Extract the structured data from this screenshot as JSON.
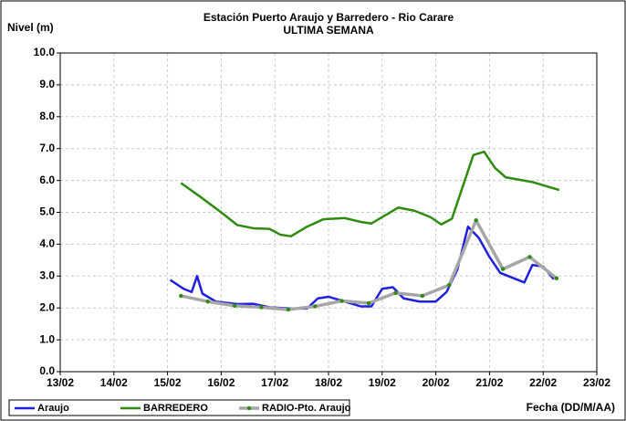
{
  "chart_data": {
    "type": "line",
    "title": "Estación Puerto Araujo y Barredero - Rio Carare",
    "subtitle": "ULTIMA SEMANA",
    "y_label": "Nivel (m)",
    "x_label": "Fecha (DD/M/AA)",
    "xlim": [
      13,
      23
    ],
    "xticks": [
      {
        "value": 13,
        "label": "13/02"
      },
      {
        "value": 14,
        "label": "14/02"
      },
      {
        "value": 15,
        "label": "15/02"
      },
      {
        "value": 16,
        "label": "16/02"
      },
      {
        "value": 17,
        "label": "17/02"
      },
      {
        "value": 18,
        "label": "18/02"
      },
      {
        "value": 19,
        "label": "19/02"
      },
      {
        "value": 20,
        "label": "20/02"
      },
      {
        "value": 21,
        "label": "21/02"
      },
      {
        "value": 22,
        "label": "22/02"
      },
      {
        "value": 23,
        "label": "23/02"
      }
    ],
    "ylim": [
      0,
      10
    ],
    "yticks": [
      {
        "value": 0,
        "label": "0.0"
      },
      {
        "value": 1,
        "label": "1.0"
      },
      {
        "value": 2,
        "label": "2.0"
      },
      {
        "value": 3,
        "label": "3.0"
      },
      {
        "value": 4,
        "label": "4.0"
      },
      {
        "value": 5,
        "label": "5.0"
      },
      {
        "value": 6,
        "label": "6.0"
      },
      {
        "value": 7,
        "label": "7.0"
      },
      {
        "value": 8,
        "label": "8.0"
      },
      {
        "value": 9,
        "label": "9.0"
      },
      {
        "value": 10,
        "label": "10.0"
      }
    ],
    "grid": true,
    "legend": "bottom",
    "series": [
      {
        "name": "Araujo",
        "color": "#1f1fe0",
        "markers": false,
        "x": [
          15.05,
          15.3,
          15.45,
          15.55,
          15.65,
          15.9,
          16.3,
          16.6,
          16.9,
          17.3,
          17.6,
          17.8,
          18.0,
          18.3,
          18.6,
          18.8,
          19.0,
          19.2,
          19.4,
          19.7,
          20.0,
          20.2,
          20.4,
          20.6,
          20.8,
          21.0,
          21.2,
          21.5,
          21.65,
          21.8,
          22.0,
          22.2
        ],
        "values": [
          2.88,
          2.6,
          2.5,
          3.0,
          2.45,
          2.2,
          2.12,
          2.13,
          2.02,
          1.98,
          1.98,
          2.3,
          2.35,
          2.2,
          2.05,
          2.05,
          2.6,
          2.65,
          2.3,
          2.2,
          2.2,
          2.5,
          3.2,
          4.55,
          4.2,
          3.6,
          3.1,
          2.9,
          2.8,
          3.35,
          3.3,
          2.9
        ]
      },
      {
        "name": "BARREDERO",
        "color": "#2e8b10",
        "markers": false,
        "x": [
          15.25,
          15.6,
          16.0,
          16.3,
          16.6,
          16.9,
          17.1,
          17.3,
          17.6,
          17.9,
          18.3,
          18.6,
          18.8,
          19.0,
          19.3,
          19.6,
          19.9,
          20.1,
          20.3,
          20.5,
          20.7,
          20.9,
          21.1,
          21.3,
          21.8,
          22.3
        ],
        "values": [
          5.92,
          5.5,
          5.0,
          4.6,
          4.5,
          4.48,
          4.3,
          4.25,
          4.55,
          4.78,
          4.82,
          4.7,
          4.65,
          4.85,
          5.15,
          5.05,
          4.85,
          4.62,
          4.8,
          5.8,
          6.8,
          6.9,
          6.4,
          6.1,
          5.95,
          5.7
        ]
      },
      {
        "name": "RADIO-Pto. Araujo",
        "color": "#a6a6a6",
        "marker_color": "#2e8b10",
        "markers": true,
        "x": [
          15.25,
          15.75,
          16.25,
          16.75,
          17.25,
          17.75,
          18.25,
          18.75,
          19.25,
          19.75,
          20.25,
          20.75,
          21.25,
          21.75,
          22.25
        ],
        "values": [
          2.38,
          2.2,
          2.07,
          2.02,
          1.95,
          2.05,
          2.22,
          2.15,
          2.47,
          2.38,
          2.72,
          4.75,
          3.22,
          3.6,
          2.93
        ]
      }
    ]
  }
}
